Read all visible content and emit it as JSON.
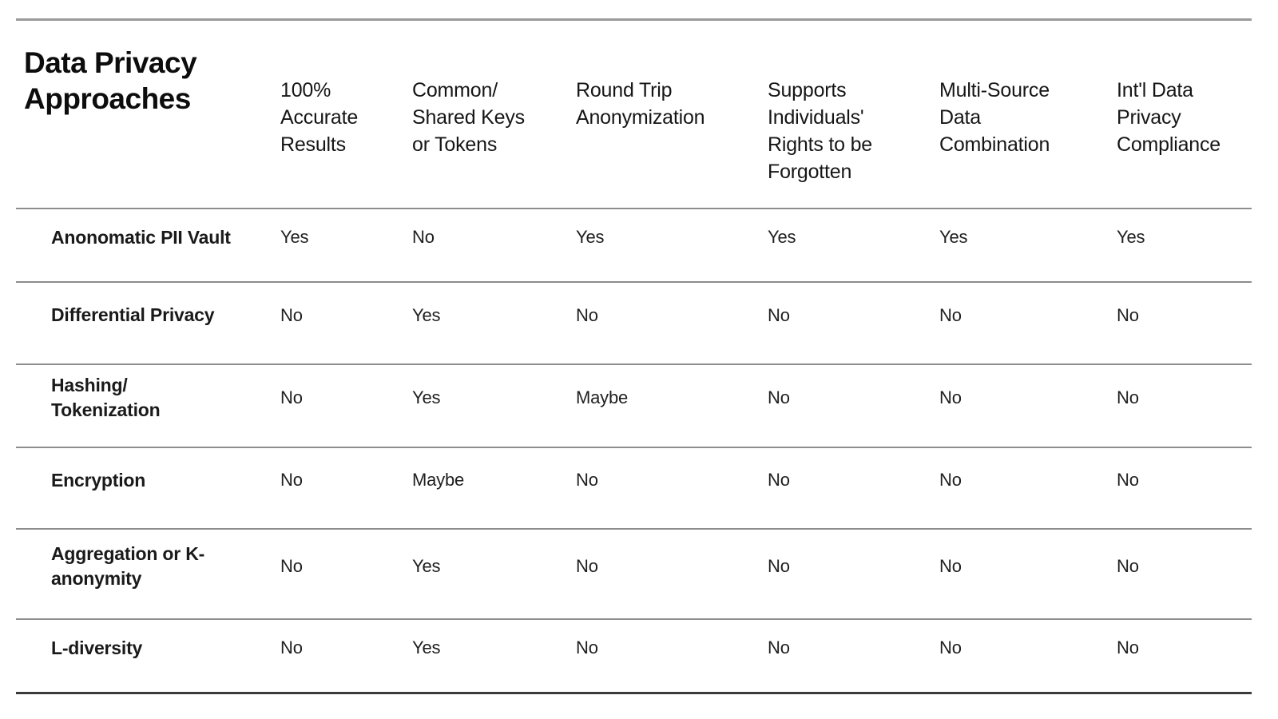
{
  "page": {
    "background": "#ffffff"
  },
  "colors": {
    "rule_top": "#9a9a9a",
    "rule_row": "#8d8d8d",
    "rule_bottom": "#3a3a3a",
    "text": "#1c1c1c"
  },
  "chart_data": {
    "type": "table",
    "title": "Data Privacy\nApproaches",
    "columns": [
      "100%\nAccurate\nResults",
      "Common/\nShared Keys\nor Tokens",
      "Round Trip\nAnonymization",
      "Supports\nIndividuals'\nRights to be\nForgotten",
      "Multi-Source\nData\nCombination",
      "Int'l Data\nPrivacy\nCompliance"
    ],
    "rows": [
      {
        "label": "Anonomatic PII Vault",
        "values": [
          "Yes",
          "No",
          "Yes",
          "Yes",
          "Yes",
          "Yes"
        ]
      },
      {
        "label": "Differential Privacy",
        "values": [
          "No",
          "Yes",
          "No",
          "No",
          "No",
          "No"
        ]
      },
      {
        "label": "Hashing/\nTokenization",
        "values": [
          "No",
          "Yes",
          "Maybe",
          "No",
          "No",
          "No"
        ]
      },
      {
        "label": "Encryption",
        "values": [
          "No",
          "Maybe",
          "No",
          "No",
          "No",
          "No"
        ]
      },
      {
        "label": "Aggregation or K-\nanonymity",
        "values": [
          "No",
          "Yes",
          "No",
          "No",
          "No",
          "No"
        ]
      },
      {
        "label": "L-diversity",
        "values": [
          "No",
          "Yes",
          "No",
          "No",
          "No",
          "No"
        ]
      }
    ]
  }
}
